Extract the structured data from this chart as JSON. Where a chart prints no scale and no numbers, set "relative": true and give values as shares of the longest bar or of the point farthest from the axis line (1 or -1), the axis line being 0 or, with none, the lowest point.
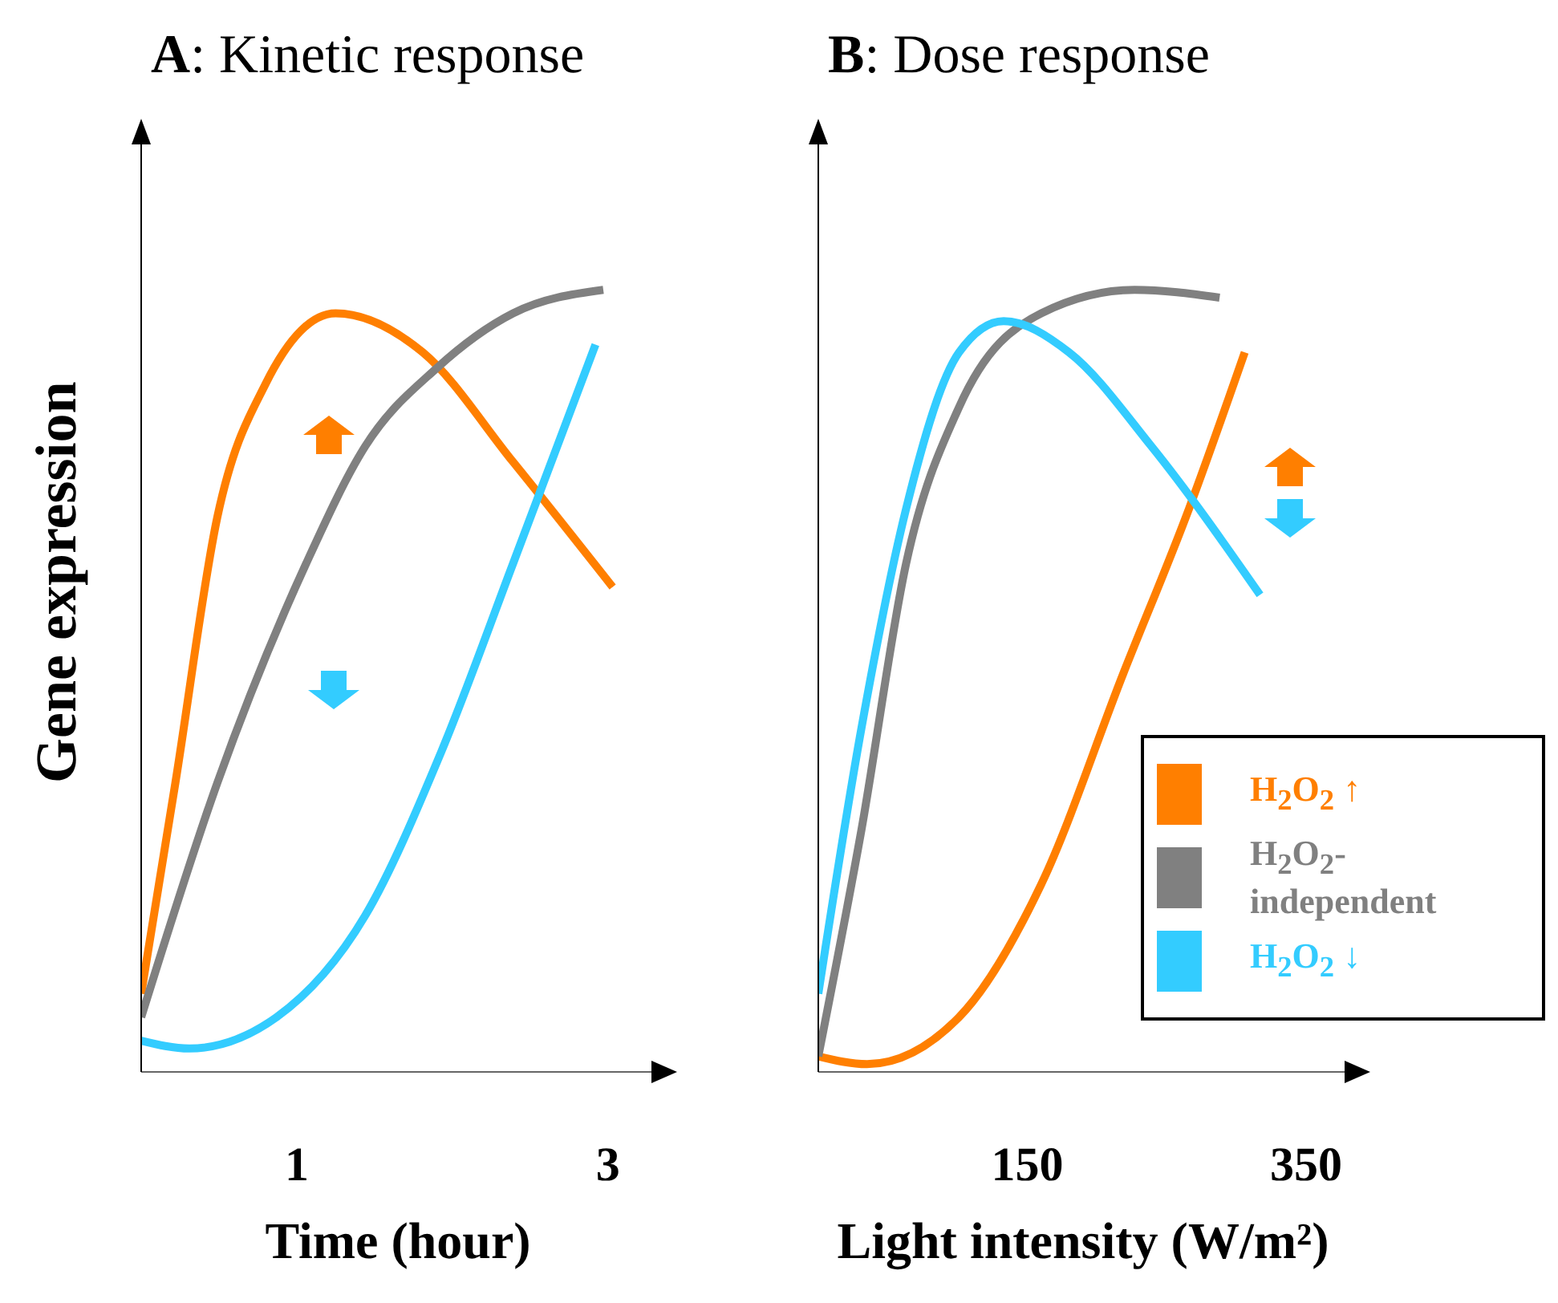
{
  "chart_data": [
    {
      "type": "line",
      "title": "A: Kinetic response",
      "xlabel": "Time (hour)",
      "ylabel": "Gene expression",
      "relative": true,
      "tick_labels": "x",
      "xlim": [
        0,
        3.3
      ],
      "xticks": [
        1,
        3
      ],
      "series": [
        {
          "color": "#ff7f00",
          "x": [
            0,
            0.22,
            0.49,
            0.8,
            1.25,
            1.81,
            2.39,
            3.03
          ],
          "values": [
            0.1,
            0.37,
            0.71,
            0.88,
            0.97,
            0.92,
            0.78,
            0.62
          ]
        },
        {
          "color": "#808080",
          "x": [
            0,
            0.49,
            1.06,
            1.44,
            1.9,
            2.39,
            2.97
          ],
          "values": [
            0.07,
            0.37,
            0.65,
            0.8,
            0.9,
            0.97,
            1
          ]
        },
        {
          "color": "#33ccff",
          "x": [
            0,
            0.31,
            0.87,
            1.44,
            1.93,
            2.39,
            2.92
          ],
          "values": [
            0.04,
            0.03,
            0.07,
            0.2,
            0.41,
            0.65,
            0.93
          ]
        }
      ]
    },
    {
      "type": "line",
      "title": "B: Dose response",
      "xlabel": "Light intensity (W/m²)",
      "relative": true,
      "tick_labels": "x",
      "xlim": [
        0,
        380
      ],
      "xticks": [
        150,
        350
      ],
      "legend": "bottom right",
      "series": [
        {
          "name": "H$_{2}$O$_{2}$ ↑",
          "color": "#ff7f00",
          "x": [
            0,
            35,
            101,
            160,
            219,
            266,
            306
          ],
          "values": [
            0.02,
            0.01,
            0.07,
            0.24,
            0.51,
            0.72,
            0.92
          ]
        },
        {
          "name": "H$_{2}$O$_{2}$-independent",
          "color": "#808080",
          "x": [
            0,
            31,
            63,
            101,
            160,
            227,
            288
          ],
          "values": [
            0.02,
            0.31,
            0.65,
            0.85,
            0.97,
            1,
            0.99
          ]
        },
        {
          "name": "H$_{2}$O$_{2}$ ↓",
          "color": "#33ccff",
          "x": [
            0,
            31,
            63,
            101,
            133,
            180,
            239,
            317
          ],
          "values": [
            0.1,
            0.44,
            0.72,
            0.92,
            0.96,
            0.92,
            0.8,
            0.61
          ]
        }
      ]
    }
  ]
}
